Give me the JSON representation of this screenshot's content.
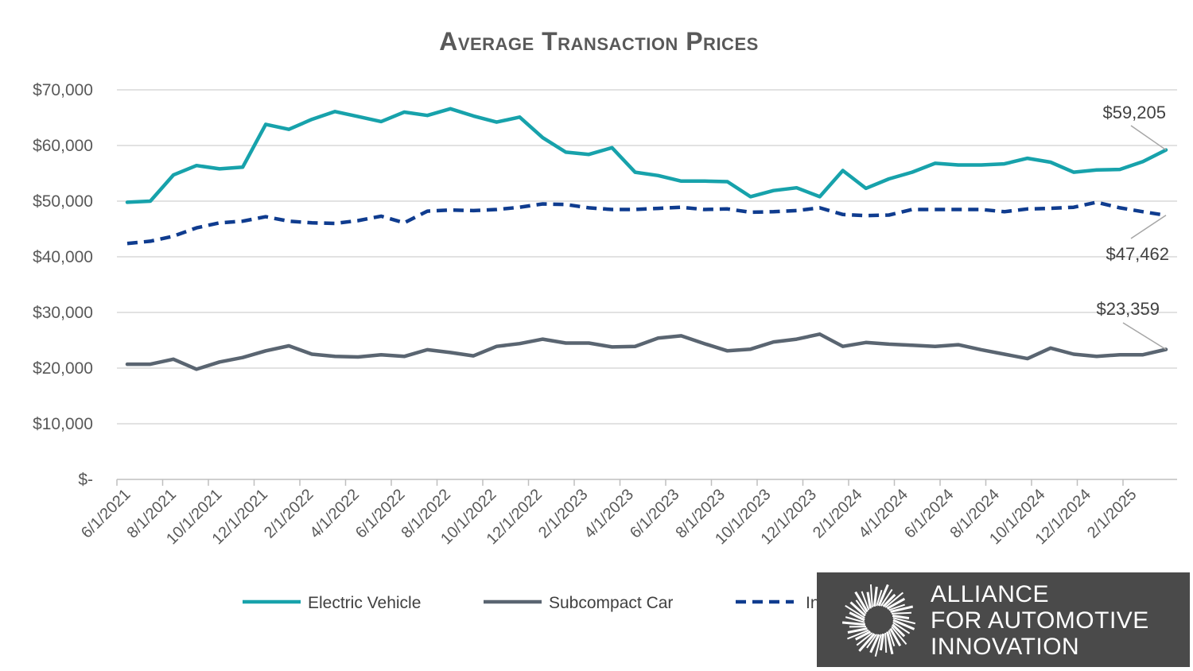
{
  "chart_data": {
    "type": "line",
    "title": "Average Transaction Prices",
    "xlabel": "",
    "ylabel": "",
    "ylim": [
      0,
      70000
    ],
    "y_ticks": [
      "$-",
      "$10,000",
      "$20,000",
      "$30,000",
      "$40,000",
      "$50,000",
      "$60,000",
      "$70,000"
    ],
    "x_tick_labels": [
      "6/1/2021",
      "8/1/2021",
      "10/1/2021",
      "12/1/2021",
      "2/1/2022",
      "4/1/2022",
      "6/1/2022",
      "8/1/2022",
      "10/1/2022",
      "12/1/2022",
      "2/1/2023",
      "4/1/2023",
      "6/1/2023",
      "8/1/2023",
      "10/1/2023",
      "12/1/2023",
      "2/1/2024",
      "4/1/2024",
      "6/1/2024",
      "8/1/2024",
      "10/1/2024",
      "12/1/2024",
      "2/1/2025"
    ],
    "x_count": 46,
    "grid": true,
    "legend_position": "bottom",
    "series": [
      {
        "name": "Electric Vehicle",
        "color": "#17A2AB",
        "style": "solid",
        "values": [
          49800,
          50000,
          54700,
          56400,
          55800,
          56100,
          63800,
          62900,
          64700,
          66100,
          65200,
          64300,
          66000,
          65400,
          66600,
          65300,
          64200,
          65100,
          61400,
          58800,
          58400,
          59600,
          55200,
          54600,
          53600,
          53600,
          53500,
          50800,
          51900,
          52400,
          50800,
          55500,
          52300,
          54000,
          55200,
          56800,
          56500,
          56500,
          56700,
          57700,
          57000,
          55200,
          55600,
          55700,
          57100,
          59205
        ]
      },
      {
        "name": "Subcompact Car",
        "color": "#5A6571",
        "style": "solid",
        "values": [
          20700,
          20700,
          21600,
          19800,
          21100,
          21900,
          23100,
          24000,
          22500,
          22100,
          22000,
          22400,
          22100,
          23300,
          22800,
          22200,
          23900,
          24400,
          25200,
          24500,
          24500,
          23800,
          23900,
          25400,
          25800,
          24400,
          23100,
          23400,
          24700,
          25200,
          26100,
          23900,
          24600,
          24300,
          24100,
          23900,
          24200,
          23300,
          22500,
          21700,
          23600,
          22500,
          22100,
          22400,
          22400,
          23359
        ]
      },
      {
        "name": "Industry Average",
        "color": "#0F3C8F",
        "style": "dashed",
        "values": [
          42400,
          42800,
          43700,
          45200,
          46100,
          46400,
          47200,
          46400,
          46100,
          46000,
          46500,
          47300,
          46100,
          48200,
          48400,
          48300,
          48500,
          48900,
          49500,
          49400,
          48800,
          48500,
          48500,
          48700,
          48900,
          48500,
          48600,
          48000,
          48100,
          48300,
          48800,
          47600,
          47400,
          47500,
          48500,
          48500,
          48500,
          48500,
          48100,
          48600,
          48700,
          48900,
          49800,
          48800,
          48100,
          47462
        ]
      }
    ],
    "annotations": [
      {
        "series": "Electric Vehicle",
        "label": "$59,205"
      },
      {
        "series": "Industry Average",
        "label": "$47,462"
      },
      {
        "series": "Subcompact Car",
        "label": "$23,359"
      }
    ]
  },
  "branding": {
    "line1": "ALLIANCE",
    "line2": "FOR AUTOMOTIVE",
    "line3": "INNOVATION",
    "logo_icon": "sunburst-logo-icon",
    "background": "#4a4a4a"
  }
}
